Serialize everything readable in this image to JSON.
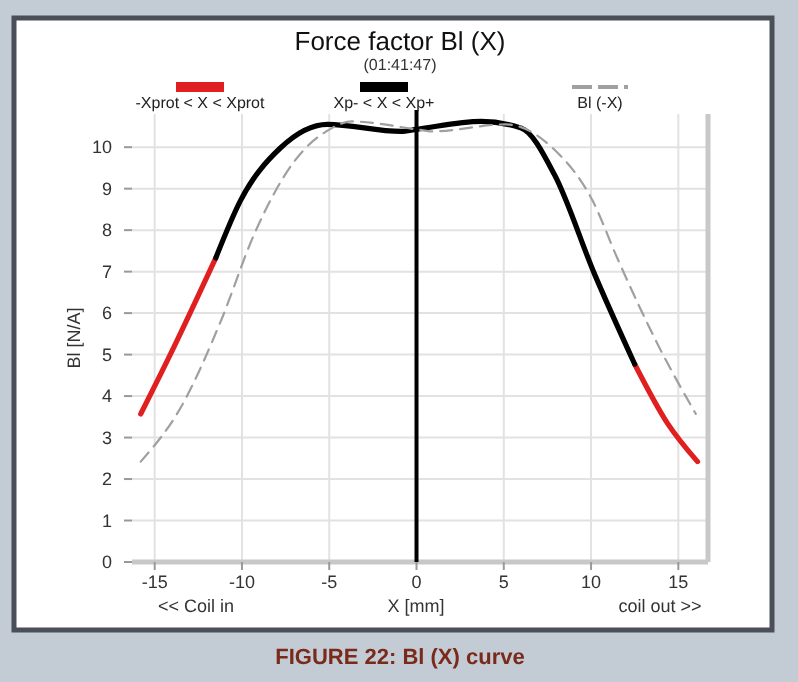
{
  "chart_data": {
    "type": "line",
    "title": "Force factor Bl (X)",
    "subtitle": "(01:41:47)",
    "xlabel": "X [mm]",
    "ylabel": "Bl [N/A]",
    "xlim": [
      -16.3,
      16.7
    ],
    "xticks": [
      -15,
      -10,
      -5,
      0,
      5,
      10,
      15
    ],
    "ylim": [
      0,
      10.8
    ],
    "yticks": [
      0,
      1,
      2,
      3,
      4,
      5,
      6,
      7,
      8,
      9,
      10
    ],
    "grid": true,
    "legend": "top",
    "marker": "none",
    "series": [
      {
        "name": "-Xprot < X < Xprot",
        "color": "#e02020",
        "line_style": "solid",
        "x": [
          -15.8,
          -13.9,
          -11.5,
          0,
          12.5,
          14.4,
          16.1
        ],
        "values": [
          3.57,
          5.18,
          7.33,
          null,
          4.77,
          3.33,
          2.42
        ]
      },
      {
        "name": "Xp- < X < Xp+",
        "color": "#000000",
        "line_style": "solid",
        "x": [
          -11.5,
          -10.1,
          -7.8,
          -5.1,
          -0.9,
          0,
          3.7,
          6,
          7.9,
          10.2,
          12.5
        ],
        "values": [
          7.33,
          8.7,
          9.98,
          10.55,
          10.38,
          10.43,
          10.62,
          10.46,
          9.34,
          6.94,
          4.77
        ]
      },
      {
        "name": "Bl (-X)",
        "color": "#a0a0a0",
        "line_style": "dashed",
        "x": [
          -15.8,
          -13.5,
          -11.2,
          -9.3,
          -7.0,
          -5.1,
          -3.7,
          0,
          0.9,
          5.1,
          7.8,
          10.1,
          11.5,
          13.9,
          16.0
        ],
        "values": [
          2.42,
          3.73,
          5.82,
          7.9,
          9.66,
          10.4,
          10.62,
          10.43,
          10.38,
          10.55,
          9.98,
          8.7,
          7.33,
          5.18,
          3.57
        ]
      }
    ],
    "ref_lines": [
      {
        "axis": "x",
        "value": 0,
        "color": "#000000"
      }
    ],
    "annotations": [
      "<< Coil in",
      "coil out >>",
      "FIGURE 22: Bl (X) curve"
    ]
  }
}
